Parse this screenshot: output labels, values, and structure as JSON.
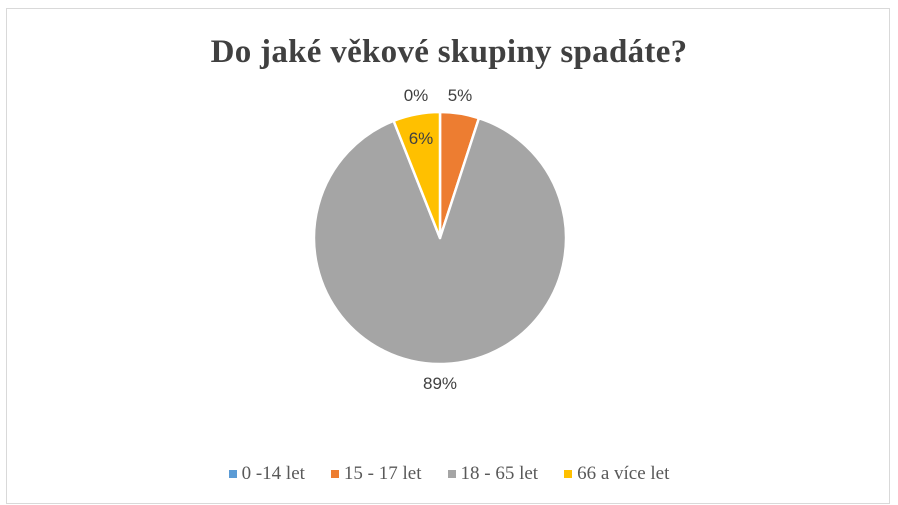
{
  "chart_data": {
    "type": "pie",
    "title": "Do jaké věkové skupiny spadáte?",
    "categories": [
      "0 -14 let",
      "15 - 17 let",
      "18 - 65 let",
      "66 a více let"
    ],
    "values": [
      0,
      5,
      89,
      6
    ],
    "data_labels": [
      "0%",
      "5%",
      "89%",
      "6%"
    ],
    "colors": [
      "#5b9bd5",
      "#ed7d31",
      "#a5a5a5",
      "#ffc000"
    ],
    "legend_position": "bottom",
    "start_angle_deg": 0
  }
}
